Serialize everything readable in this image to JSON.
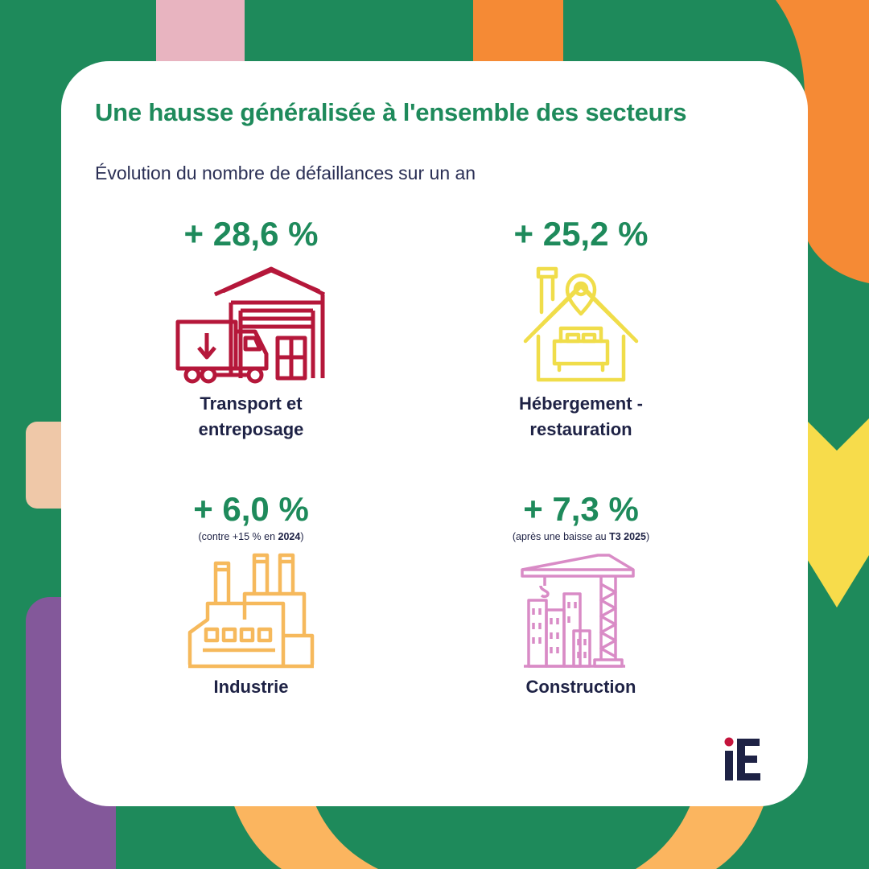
{
  "header": {
    "title": "Une hausse généralisée à l'ensemble des secteurs",
    "subtitle": "Évolution du nombre de défaillances sur un an"
  },
  "sectors": [
    {
      "value": "+ 28,6 %",
      "note": null,
      "label_line1": "Transport et",
      "label_line2": "entreposage",
      "icon": "warehouse-truck-icon",
      "color": "#b5173a"
    },
    {
      "value": "+ 25,2 %",
      "note": null,
      "label_line1": "Hébergement -",
      "label_line2": "restauration",
      "icon": "hotel-bed-location-icon",
      "color": "#f0dd4a"
    },
    {
      "value": "+ 6,0 %",
      "note": {
        "before": "(contre +15 % en ",
        "bold": "2024",
        "after": ")"
      },
      "label_line1": "Industrie",
      "label_line2": "",
      "icon": "factory-icon",
      "color": "#f6b95c"
    },
    {
      "value": "+ 7,3 %",
      "note": {
        "before": "(après une baisse au ",
        "bold": "T3 2025",
        "after": ")"
      },
      "label_line1": "Construction",
      "label_line2": "",
      "icon": "crane-buildings-icon",
      "color": "#d98bc6"
    }
  ],
  "logo": {
    "text": "iE",
    "icon": "ie-logo"
  },
  "colors": {
    "background": "#1e8a5b",
    "accent_green": "#1e8a5b",
    "text_dark": "#1e2245",
    "shape_pink": "#e8b4c0",
    "shape_orange": "#f58a35",
    "shape_peach": "#efc8a8",
    "shape_yellow": "#f7dc4b",
    "shape_purple": "#83589a",
    "shape_light_orange": "#fbb55f"
  }
}
